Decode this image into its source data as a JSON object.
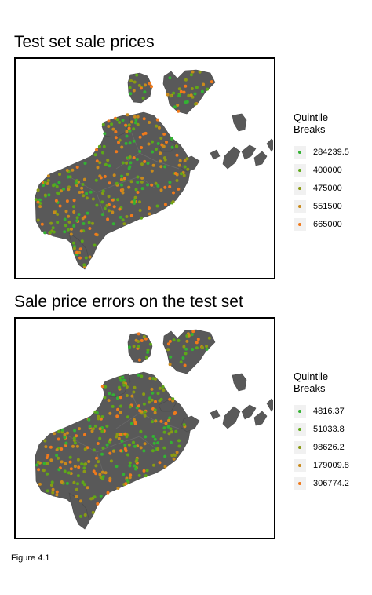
{
  "maps": [
    {
      "title": "Test set sale prices",
      "legend_title": [
        "Quintile",
        "Breaks"
      ],
      "legend": [
        {
          "label": "284239.5",
          "color": "#33b233"
        },
        {
          "label": "400000",
          "color": "#5ea818"
        },
        {
          "label": "475000",
          "color": "#8a9a14"
        },
        {
          "label": "551500",
          "color": "#c98a1c"
        },
        {
          "label": "665000",
          "color": "#f07a1c"
        }
      ]
    },
    {
      "title": "Sale price errors on the test set",
      "legend_title": [
        "Quintile",
        "Breaks"
      ],
      "legend": [
        {
          "label": "4816.37",
          "color": "#33b233"
        },
        {
          "label": "51033.8",
          "color": "#5ea818"
        },
        {
          "label": "98626.2",
          "color": "#8a9a14"
        },
        {
          "label": "179009.8",
          "color": "#c98a1c"
        },
        {
          "label": "306774.2",
          "color": "#f07a1c"
        }
      ]
    }
  ],
  "caption": "Figure 4.1",
  "land_color": "#595959"
}
